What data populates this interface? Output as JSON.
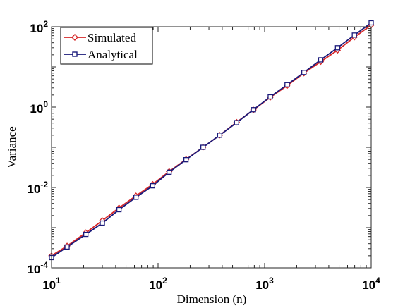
{
  "chart_data": {
    "type": "line",
    "xscale": "log",
    "yscale": "log",
    "xlim": [
      10,
      10000
    ],
    "ylim": [
      0.0001,
      100
    ],
    "xlabel": "Dimension (n)",
    "ylabel": "Variance",
    "x_ticks": [
      {
        "value": 10,
        "base": "10",
        "exp": "1"
      },
      {
        "value": 100,
        "base": "10",
        "exp": "2"
      },
      {
        "value": 1000,
        "base": "10",
        "exp": "3"
      },
      {
        "value": 10000,
        "base": "10",
        "exp": "4"
      }
    ],
    "y_ticks": [
      {
        "value": 0.0001,
        "base": "10",
        "exp": "-4"
      },
      {
        "value": 0.01,
        "base": "10",
        "exp": "-2"
      },
      {
        "value": 1,
        "base": "10",
        "exp": "0"
      },
      {
        "value": 100,
        "base": "10",
        "exp": "2"
      }
    ],
    "legend_position": "top-left",
    "grid": false,
    "series": [
      {
        "name": "Simulated",
        "color": "#d62728",
        "marker": "diamond",
        "x": [
          10,
          14,
          21,
          30,
          43,
          62,
          89,
          127,
          183,
          264,
          379,
          546,
          785,
          1129,
          1624,
          2336,
          3360,
          4833,
          6952,
          10000
        ],
        "y": [
          0.0002,
          0.00035,
          0.00075,
          0.0015,
          0.0031,
          0.0062,
          0.012,
          0.025,
          0.05,
          0.1,
          0.2,
          0.42,
          0.85,
          1.75,
          3.4,
          7,
          13.5,
          26,
          55,
          110
        ]
      },
      {
        "name": "Analytical",
        "color": "#1a1a7a",
        "marker": "square",
        "x": [
          10,
          14,
          21,
          30,
          43,
          62,
          89,
          127,
          183,
          264,
          379,
          546,
          785,
          1129,
          1624,
          2336,
          3360,
          4833,
          6952,
          10000
        ],
        "y": [
          0.00018,
          0.00033,
          0.00068,
          0.0013,
          0.0028,
          0.0057,
          0.011,
          0.024,
          0.049,
          0.1,
          0.2,
          0.41,
          0.86,
          1.8,
          3.6,
          7.3,
          15,
          30,
          62,
          125
        ]
      }
    ]
  }
}
